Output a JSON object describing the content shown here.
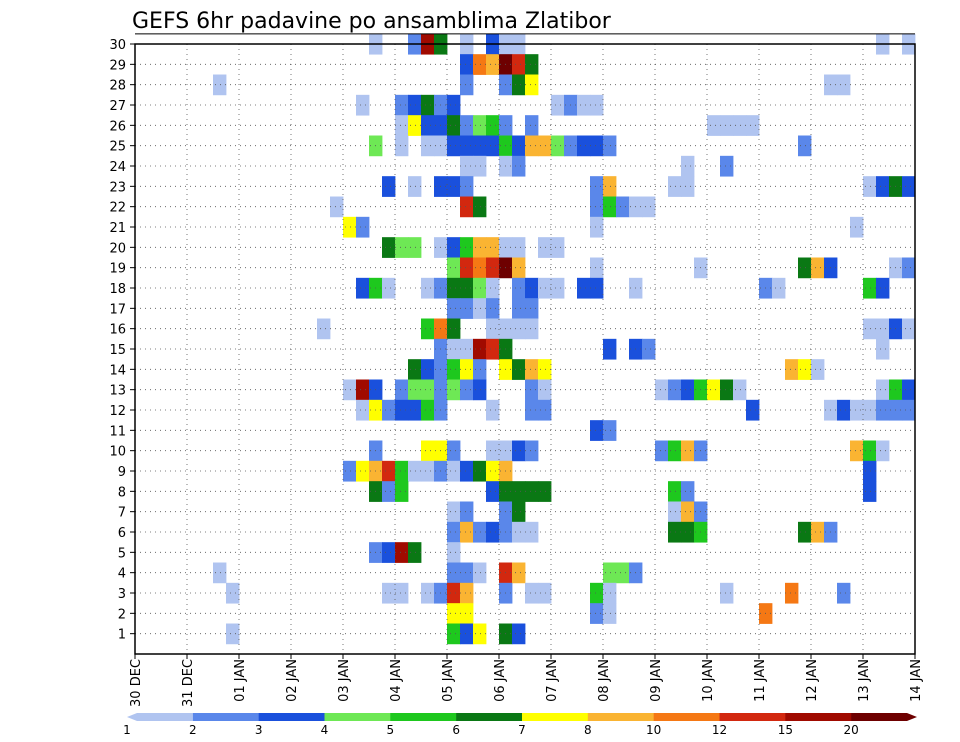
{
  "chart_data": {
    "type": "heatmap",
    "title": "GEFS 6hr padavine po ansamblima Zlatibor",
    "xlabel": "",
    "ylabel": "",
    "x_tick_labels": [
      "30 DEC",
      "31 DEC",
      "01 JAN",
      "02 JAN",
      "03 JAN",
      "04 JAN",
      "05 JAN",
      "06 JAN",
      "07 JAN",
      "08 JAN",
      "09 JAN",
      "10 JAN",
      "11 JAN",
      "12 JAN",
      "13 JAN",
      "14 JAN"
    ],
    "y_tick_labels": [
      "1",
      "2",
      "3",
      "4",
      "5",
      "6",
      "7",
      "8",
      "9",
      "10",
      "11",
      "12",
      "13",
      "14",
      "15",
      "16",
      "17",
      "18",
      "19",
      "20",
      "21",
      "22",
      "23",
      "24",
      "25",
      "26",
      "27",
      "28",
      "29",
      "30"
    ],
    "xlim": [
      0,
      60
    ],
    "ylim": [
      0,
      30
    ],
    "x_unit": "6-hour step",
    "y_unit": "ensemble member",
    "colorbar": {
      "thresholds": [
        1,
        2,
        3,
        4,
        5,
        6,
        7,
        8,
        10,
        12,
        15,
        20
      ],
      "labels": [
        "1",
        "2",
        "3",
        "4",
        "5",
        "6",
        "7",
        "8",
        "10",
        "12",
        "15",
        "20"
      ],
      "colors": [
        "#b0c4f0",
        "#5a87ea",
        "#1a50dc",
        "#6ee855",
        "#1ec81e",
        "#0a7814",
        "#ffff00",
        "#fab432",
        "#f57814",
        "#d2280f",
        "#a00a00",
        "#6e0000"
      ]
    },
    "cell_legend": "each cell = [member, 6h step, colour class 0-11 from colorbar]",
    "cells": [
      [
        30,
        18,
        0
      ],
      [
        30,
        21,
        1
      ],
      [
        30,
        22,
        10
      ],
      [
        30,
        23,
        5
      ],
      [
        30,
        25,
        0
      ],
      [
        30,
        27,
        2
      ],
      [
        30,
        28,
        0
      ],
      [
        30,
        29,
        0
      ],
      [
        30,
        57,
        0
      ],
      [
        30,
        59,
        0
      ],
      [
        29,
        25,
        2
      ],
      [
        29,
        26,
        8
      ],
      [
        29,
        27,
        7
      ],
      [
        29,
        28,
        11
      ],
      [
        29,
        29,
        9
      ],
      [
        29,
        30,
        5
      ],
      [
        28,
        6,
        0
      ],
      [
        28,
        25,
        1
      ],
      [
        28,
        28,
        1
      ],
      [
        28,
        29,
        5
      ],
      [
        28,
        30,
        6
      ],
      [
        28,
        53,
        0
      ],
      [
        28,
        54,
        0
      ],
      [
        27,
        17,
        0
      ],
      [
        27,
        20,
        1
      ],
      [
        27,
        21,
        2
      ],
      [
        27,
        22,
        5
      ],
      [
        27,
        23,
        1
      ],
      [
        27,
        24,
        2
      ],
      [
        27,
        32,
        0
      ],
      [
        27,
        33,
        1
      ],
      [
        27,
        34,
        0
      ],
      [
        27,
        35,
        0
      ],
      [
        26,
        20,
        0
      ],
      [
        26,
        21,
        6
      ],
      [
        26,
        22,
        2
      ],
      [
        26,
        23,
        2
      ],
      [
        26,
        24,
        5
      ],
      [
        26,
        25,
        1
      ],
      [
        26,
        26,
        3
      ],
      [
        26,
        27,
        4
      ],
      [
        26,
        28,
        1
      ],
      [
        26,
        30,
        1
      ],
      [
        26,
        44,
        0
      ],
      [
        26,
        45,
        0
      ],
      [
        26,
        46,
        0
      ],
      [
        26,
        47,
        0
      ],
      [
        25,
        18,
        3
      ],
      [
        25,
        20,
        0
      ],
      [
        25,
        22,
        0
      ],
      [
        25,
        23,
        0
      ],
      [
        25,
        24,
        2
      ],
      [
        25,
        25,
        2
      ],
      [
        25,
        26,
        2
      ],
      [
        25,
        27,
        2
      ],
      [
        25,
        28,
        4
      ],
      [
        25,
        29,
        2
      ],
      [
        25,
        30,
        7
      ],
      [
        25,
        31,
        7
      ],
      [
        25,
        32,
        3
      ],
      [
        25,
        33,
        1
      ],
      [
        25,
        34,
        2
      ],
      [
        25,
        35,
        2
      ],
      [
        25,
        36,
        1
      ],
      [
        25,
        51,
        1
      ],
      [
        24,
        25,
        0
      ],
      [
        24,
        26,
        0
      ],
      [
        24,
        28,
        0
      ],
      [
        24,
        29,
        1
      ],
      [
        24,
        42,
        0
      ],
      [
        24,
        45,
        1
      ],
      [
        23,
        19,
        2
      ],
      [
        23,
        21,
        0
      ],
      [
        23,
        23,
        2
      ],
      [
        23,
        24,
        2
      ],
      [
        23,
        25,
        1
      ],
      [
        23,
        35,
        1
      ],
      [
        23,
        36,
        7
      ],
      [
        23,
        41,
        0
      ],
      [
        23,
        42,
        0
      ],
      [
        23,
        56,
        0
      ],
      [
        23,
        57,
        2
      ],
      [
        23,
        58,
        5
      ],
      [
        23,
        59,
        2
      ],
      [
        22,
        15,
        0
      ],
      [
        22,
        25,
        9
      ],
      [
        22,
        26,
        5
      ],
      [
        22,
        35,
        1
      ],
      [
        22,
        36,
        4
      ],
      [
        22,
        37,
        1
      ],
      [
        22,
        38,
        0
      ],
      [
        22,
        39,
        0
      ],
      [
        21,
        16,
        6
      ],
      [
        21,
        17,
        1
      ],
      [
        21,
        35,
        0
      ],
      [
        21,
        55,
        0
      ],
      [
        20,
        19,
        5
      ],
      [
        20,
        20,
        3
      ],
      [
        20,
        21,
        3
      ],
      [
        20,
        23,
        0
      ],
      [
        20,
        24,
        2
      ],
      [
        20,
        25,
        4
      ],
      [
        20,
        26,
        7
      ],
      [
        20,
        27,
        7
      ],
      [
        20,
        28,
        0
      ],
      [
        20,
        29,
        0
      ],
      [
        20,
        31,
        0
      ],
      [
        20,
        32,
        0
      ],
      [
        19,
        24,
        3
      ],
      [
        19,
        25,
        9
      ],
      [
        19,
        26,
        8
      ],
      [
        19,
        27,
        9
      ],
      [
        19,
        28,
        11
      ],
      [
        19,
        29,
        7
      ],
      [
        19,
        35,
        0
      ],
      [
        19,
        43,
        0
      ],
      [
        19,
        51,
        5
      ],
      [
        19,
        52,
        7
      ],
      [
        19,
        53,
        2
      ],
      [
        19,
        58,
        0
      ],
      [
        19,
        59,
        1
      ],
      [
        18,
        17,
        2
      ],
      [
        18,
        18,
        4
      ],
      [
        18,
        19,
        0
      ],
      [
        18,
        22,
        0
      ],
      [
        18,
        23,
        1
      ],
      [
        18,
        24,
        5
      ],
      [
        18,
        25,
        5
      ],
      [
        18,
        26,
        3
      ],
      [
        18,
        27,
        0
      ],
      [
        18,
        29,
        1
      ],
      [
        18,
        30,
        2
      ],
      [
        18,
        31,
        0
      ],
      [
        18,
        32,
        0
      ],
      [
        18,
        34,
        2
      ],
      [
        18,
        35,
        2
      ],
      [
        18,
        38,
        0
      ],
      [
        18,
        48,
        1
      ],
      [
        18,
        49,
        0
      ],
      [
        18,
        56,
        4
      ],
      [
        18,
        57,
        2
      ],
      [
        17,
        24,
        1
      ],
      [
        17,
        25,
        1
      ],
      [
        17,
        26,
        0
      ],
      [
        17,
        27,
        1
      ],
      [
        17,
        29,
        1
      ],
      [
        17,
        30,
        1
      ],
      [
        16,
        14,
        0
      ],
      [
        16,
        22,
        4
      ],
      [
        16,
        23,
        8
      ],
      [
        16,
        24,
        5
      ],
      [
        16,
        27,
        0
      ],
      [
        16,
        28,
        0
      ],
      [
        16,
        29,
        0
      ],
      [
        16,
        30,
        0
      ],
      [
        16,
        56,
        0
      ],
      [
        16,
        57,
        0
      ],
      [
        16,
        58,
        2
      ],
      [
        16,
        59,
        0
      ],
      [
        15,
        23,
        1
      ],
      [
        15,
        24,
        0
      ],
      [
        15,
        25,
        0
      ],
      [
        15,
        26,
        10
      ],
      [
        15,
        27,
        9
      ],
      [
        15,
        28,
        5
      ],
      [
        15,
        36,
        2
      ],
      [
        15,
        38,
        2
      ],
      [
        15,
        39,
        1
      ],
      [
        15,
        57,
        0
      ],
      [
        14,
        21,
        5
      ],
      [
        14,
        22,
        2
      ],
      [
        14,
        23,
        1
      ],
      [
        14,
        24,
        4
      ],
      [
        14,
        25,
        6
      ],
      [
        14,
        26,
        1
      ],
      [
        14,
        28,
        6
      ],
      [
        14,
        29,
        5
      ],
      [
        14,
        30,
        7
      ],
      [
        14,
        31,
        6
      ],
      [
        14,
        50,
        7
      ],
      [
        14,
        51,
        6
      ],
      [
        14,
        52,
        0
      ],
      [
        13,
        16,
        0
      ],
      [
        13,
        17,
        10
      ],
      [
        13,
        18,
        2
      ],
      [
        13,
        20,
        1
      ],
      [
        13,
        21,
        3
      ],
      [
        13,
        22,
        3
      ],
      [
        13,
        23,
        1
      ],
      [
        13,
        24,
        3
      ],
      [
        13,
        25,
        1
      ],
      [
        13,
        26,
        2
      ],
      [
        13,
        30,
        1
      ],
      [
        13,
        31,
        0
      ],
      [
        13,
        40,
        0
      ],
      [
        13,
        41,
        1
      ],
      [
        13,
        42,
        2
      ],
      [
        13,
        43,
        4
      ],
      [
        13,
        44,
        6
      ],
      [
        13,
        45,
        5
      ],
      [
        13,
        46,
        0
      ],
      [
        13,
        57,
        0
      ],
      [
        13,
        58,
        4
      ],
      [
        13,
        59,
        2
      ],
      [
        12,
        17,
        0
      ],
      [
        12,
        18,
        6
      ],
      [
        12,
        19,
        1
      ],
      [
        12,
        20,
        2
      ],
      [
        12,
        21,
        2
      ],
      [
        12,
        22,
        4
      ],
      [
        12,
        23,
        1
      ],
      [
        12,
        27,
        0
      ],
      [
        12,
        30,
        1
      ],
      [
        12,
        31,
        1
      ],
      [
        12,
        47,
        2
      ],
      [
        12,
        53,
        0
      ],
      [
        12,
        54,
        2
      ],
      [
        12,
        55,
        0
      ],
      [
        12,
        56,
        0
      ],
      [
        12,
        57,
        1
      ],
      [
        12,
        58,
        1
      ],
      [
        12,
        59,
        1
      ],
      [
        11,
        35,
        2
      ],
      [
        11,
        36,
        1
      ],
      [
        10,
        18,
        1
      ],
      [
        10,
        22,
        6
      ],
      [
        10,
        23,
        6
      ],
      [
        10,
        24,
        1
      ],
      [
        10,
        27,
        0
      ],
      [
        10,
        28,
        0
      ],
      [
        10,
        29,
        2
      ],
      [
        10,
        30,
        1
      ],
      [
        10,
        40,
        1
      ],
      [
        10,
        41,
        4
      ],
      [
        10,
        42,
        7
      ],
      [
        10,
        43,
        1
      ],
      [
        10,
        55,
        7
      ],
      [
        10,
        56,
        4
      ],
      [
        10,
        57,
        0
      ],
      [
        9,
        16,
        1
      ],
      [
        9,
        17,
        6
      ],
      [
        9,
        18,
        7
      ],
      [
        9,
        19,
        9
      ],
      [
        9,
        20,
        4
      ],
      [
        9,
        21,
        0
      ],
      [
        9,
        22,
        0
      ],
      [
        9,
        23,
        1
      ],
      [
        9,
        24,
        0
      ],
      [
        9,
        25,
        2
      ],
      [
        9,
        26,
        5
      ],
      [
        9,
        27,
        6
      ],
      [
        9,
        28,
        7
      ],
      [
        9,
        56,
        2
      ],
      [
        8,
        18,
        5
      ],
      [
        8,
        19,
        1
      ],
      [
        8,
        20,
        4
      ],
      [
        8,
        27,
        2
      ],
      [
        8,
        28,
        5
      ],
      [
        8,
        29,
        5
      ],
      [
        8,
        30,
        5
      ],
      [
        8,
        31,
        5
      ],
      [
        8,
        41,
        4
      ],
      [
        8,
        42,
        1
      ],
      [
        8,
        56,
        2
      ],
      [
        7,
        24,
        0
      ],
      [
        7,
        25,
        1
      ],
      [
        7,
        28,
        1
      ],
      [
        7,
        29,
        5
      ],
      [
        7,
        41,
        0
      ],
      [
        7,
        42,
        7
      ],
      [
        7,
        43,
        1
      ],
      [
        6,
        24,
        1
      ],
      [
        6,
        25,
        7
      ],
      [
        6,
        26,
        1
      ],
      [
        6,
        27,
        2
      ],
      [
        6,
        28,
        1
      ],
      [
        6,
        29,
        0
      ],
      [
        6,
        30,
        0
      ],
      [
        6,
        41,
        5
      ],
      [
        6,
        42,
        5
      ],
      [
        6,
        43,
        4
      ],
      [
        6,
        51,
        5
      ],
      [
        6,
        52,
        7
      ],
      [
        6,
        53,
        1
      ],
      [
        5,
        18,
        1
      ],
      [
        5,
        19,
        2
      ],
      [
        5,
        20,
        10
      ],
      [
        5,
        21,
        5
      ],
      [
        5,
        24,
        0
      ],
      [
        4,
        6,
        0
      ],
      [
        4,
        24,
        1
      ],
      [
        4,
        25,
        1
      ],
      [
        4,
        26,
        0
      ],
      [
        4,
        28,
        9
      ],
      [
        4,
        29,
        7
      ],
      [
        4,
        36,
        3
      ],
      [
        4,
        37,
        3
      ],
      [
        4,
        38,
        1
      ],
      [
        3,
        7,
        0
      ],
      [
        3,
        19,
        0
      ],
      [
        3,
        20,
        0
      ],
      [
        3,
        22,
        0
      ],
      [
        3,
        23,
        1
      ],
      [
        3,
        24,
        9
      ],
      [
        3,
        25,
        7
      ],
      [
        3,
        28,
        1
      ],
      [
        3,
        30,
        0
      ],
      [
        3,
        31,
        0
      ],
      [
        3,
        35,
        4
      ],
      [
        3,
        36,
        0
      ],
      [
        3,
        45,
        0
      ],
      [
        3,
        50,
        8
      ],
      [
        3,
        54,
        1
      ],
      [
        2,
        24,
        6
      ],
      [
        2,
        25,
        6
      ],
      [
        2,
        35,
        1
      ],
      [
        2,
        36,
        0
      ],
      [
        2,
        48,
        8
      ],
      [
        1,
        7,
        0
      ],
      [
        1,
        24,
        4
      ],
      [
        1,
        25,
        2
      ],
      [
        1,
        26,
        6
      ],
      [
        1,
        28,
        5
      ],
      [
        1,
        29,
        2
      ]
    ]
  }
}
